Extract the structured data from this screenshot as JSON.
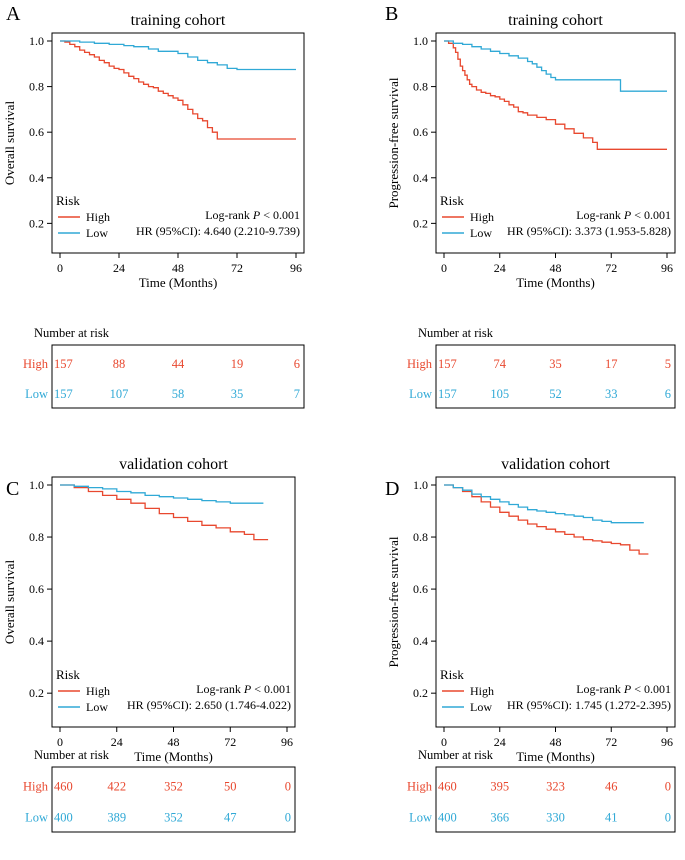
{
  "chart_data": [
    {
      "type": "line",
      "panel": "A",
      "title": "training cohort",
      "xlabel": "Time (Months)",
      "ylabel": "Overall survival",
      "xlim": [
        0,
        96
      ],
      "ylim": [
        0.07,
        1.0
      ],
      "xticks": [
        0,
        24,
        48,
        72,
        96
      ],
      "yticks": [
        0.2,
        0.4,
        0.6,
        0.8,
        1.0
      ],
      "legend_title": "Risk",
      "legend_position": "bottom-left",
      "stats": {
        "logrank_label": "Log-rank ",
        "p_label": "P",
        "p_value": " < 0.001",
        "hr": "HR (95%CI): 4.640 (2.210-9.739)"
      },
      "series": [
        {
          "name": "High",
          "color": "#e8482f",
          "x": [
            0,
            2,
            4,
            6,
            8,
            10,
            12,
            14,
            16,
            18,
            20,
            22,
            24,
            26,
            28,
            30,
            32,
            34,
            36,
            38,
            40,
            42,
            44,
            46,
            48,
            50,
            52,
            54,
            56,
            58,
            60,
            62,
            64,
            66,
            96
          ],
          "y": [
            1.0,
            0.995,
            0.985,
            0.975,
            0.96,
            0.95,
            0.94,
            0.93,
            0.915,
            0.905,
            0.89,
            0.88,
            0.875,
            0.86,
            0.845,
            0.835,
            0.82,
            0.81,
            0.8,
            0.795,
            0.78,
            0.77,
            0.76,
            0.75,
            0.74,
            0.72,
            0.7,
            0.68,
            0.66,
            0.65,
            0.62,
            0.6,
            0.57,
            0.57,
            0.57
          ]
        },
        {
          "name": "Low",
          "color": "#30a9d6",
          "x": [
            0,
            8,
            14,
            20,
            26,
            30,
            36,
            40,
            48,
            52,
            56,
            60,
            64,
            68,
            72,
            96
          ],
          "y": [
            1.0,
            0.995,
            0.99,
            0.985,
            0.98,
            0.975,
            0.965,
            0.955,
            0.945,
            0.93,
            0.915,
            0.905,
            0.895,
            0.88,
            0.875,
            0.875
          ]
        }
      ],
      "risk_table": {
        "title": "Number at risk",
        "rows": [
          {
            "label": "High",
            "color": "#e8482f",
            "values": [
              "157",
              "88",
              "44",
              "19",
              "6"
            ]
          },
          {
            "label": "Low",
            "color": "#30a9d6",
            "values": [
              "157",
              "107",
              "58",
              "35",
              "7"
            ]
          }
        ]
      }
    },
    {
      "type": "line",
      "panel": "B",
      "title": "training cohort",
      "xlabel": "Time (Months)",
      "ylabel": "Progression-free survival",
      "xlim": [
        0,
        96
      ],
      "ylim": [
        0.07,
        1.0
      ],
      "xticks": [
        0,
        24,
        48,
        72,
        96
      ],
      "yticks": [
        0.2,
        0.4,
        0.6,
        0.8,
        1.0
      ],
      "legend_title": "Risk",
      "legend_position": "bottom-left",
      "stats": {
        "logrank_label": "Log-rank ",
        "p_label": "P",
        "p_value": " < 0.001",
        "hr": "HR (95%CI): 3.373 (1.953-5.828)"
      },
      "series": [
        {
          "name": "High",
          "color": "#e8482f",
          "x": [
            0,
            2,
            4,
            5,
            6,
            7,
            8,
            9,
            10,
            11,
            12,
            14,
            16,
            18,
            20,
            22,
            24,
            26,
            28,
            30,
            32,
            34,
            36,
            40,
            44,
            48,
            52,
            56,
            60,
            64,
            66,
            96
          ],
          "y": [
            1.0,
            0.99,
            0.97,
            0.95,
            0.92,
            0.89,
            0.87,
            0.85,
            0.83,
            0.81,
            0.8,
            0.785,
            0.775,
            0.77,
            0.76,
            0.755,
            0.745,
            0.735,
            0.72,
            0.71,
            0.69,
            0.685,
            0.675,
            0.665,
            0.655,
            0.635,
            0.615,
            0.595,
            0.575,
            0.555,
            0.525,
            0.525
          ]
        },
        {
          "name": "Low",
          "color": "#30a9d6",
          "x": [
            0,
            4,
            8,
            12,
            16,
            20,
            24,
            28,
            32,
            36,
            38,
            40,
            42,
            44,
            46,
            48,
            50,
            60,
            70,
            76,
            80,
            96
          ],
          "y": [
            1.0,
            0.99,
            0.985,
            0.975,
            0.965,
            0.955,
            0.945,
            0.935,
            0.925,
            0.91,
            0.9,
            0.885,
            0.87,
            0.855,
            0.84,
            0.83,
            0.83,
            0.83,
            0.83,
            0.78,
            0.78,
            0.78
          ]
        }
      ],
      "risk_table": {
        "title": "Number at risk",
        "rows": [
          {
            "label": "High",
            "color": "#e8482f",
            "values": [
              "157",
              "74",
              "35",
              "17",
              "5"
            ]
          },
          {
            "label": "Low",
            "color": "#30a9d6",
            "values": [
              "157",
              "105",
              "52",
              "33",
              "6"
            ]
          }
        ]
      }
    },
    {
      "type": "line",
      "panel": "C",
      "title": "validation cohort",
      "xlabel": "Time (Months)",
      "ylabel": "Overall survival",
      "xlim": [
        0,
        96
      ],
      "ylim": [
        0.07,
        1.0
      ],
      "xticks": [
        0,
        24,
        48,
        72,
        96
      ],
      "yticks": [
        0.2,
        0.4,
        0.6,
        0.8,
        1.0
      ],
      "legend_title": "Risk",
      "legend_position": "bottom-left",
      "stats": {
        "logrank_label": "Log-rank ",
        "p_label": "P",
        "p_value": " < 0.001",
        "hr": "HR (95%CI): 2.650 (1.746-4.022)"
      },
      "series": [
        {
          "name": "High",
          "color": "#e8482f",
          "x": [
            0,
            6,
            12,
            18,
            24,
            30,
            36,
            42,
            48,
            54,
            60,
            66,
            72,
            78,
            82,
            88
          ],
          "y": [
            1.0,
            0.99,
            0.975,
            0.96,
            0.945,
            0.93,
            0.91,
            0.89,
            0.875,
            0.86,
            0.845,
            0.835,
            0.82,
            0.81,
            0.79,
            0.79
          ]
        },
        {
          "name": "Low",
          "color": "#30a9d6",
          "x": [
            0,
            6,
            12,
            18,
            24,
            30,
            36,
            42,
            48,
            54,
            60,
            66,
            72,
            78,
            86
          ],
          "y": [
            1.0,
            0.995,
            0.99,
            0.985,
            0.975,
            0.97,
            0.96,
            0.955,
            0.95,
            0.945,
            0.94,
            0.935,
            0.93,
            0.93,
            0.93
          ]
        }
      ],
      "risk_table": {
        "title": "Number at risk",
        "rows": [
          {
            "label": "High",
            "color": "#e8482f",
            "values": [
              "460",
              "422",
              "352",
              "50",
              "0"
            ]
          },
          {
            "label": "Low",
            "color": "#30a9d6",
            "values": [
              "400",
              "389",
              "352",
              "47",
              "0"
            ]
          }
        ]
      }
    },
    {
      "type": "line",
      "panel": "D",
      "title": "validation cohort",
      "xlabel": "Time (Months)",
      "ylabel": "Progression-free survival",
      "xlim": [
        0,
        96
      ],
      "ylim": [
        0.07,
        1.0
      ],
      "xticks": [
        0,
        24,
        48,
        72,
        96
      ],
      "yticks": [
        0.2,
        0.4,
        0.6,
        0.8,
        1.0
      ],
      "legend_title": "Risk",
      "legend_position": "bottom-left",
      "stats": {
        "logrank_label": "Log-rank ",
        "p_label": "P",
        "p_value": " < 0.001",
        "hr": "HR (95%CI): 1.745 (1.272-2.395)"
      },
      "series": [
        {
          "name": "High",
          "color": "#e8482f",
          "x": [
            0,
            4,
            8,
            12,
            16,
            20,
            24,
            28,
            32,
            36,
            40,
            44,
            48,
            52,
            56,
            60,
            64,
            68,
            72,
            76,
            80,
            84,
            88
          ],
          "y": [
            1.0,
            0.99,
            0.975,
            0.955,
            0.935,
            0.915,
            0.895,
            0.88,
            0.865,
            0.85,
            0.84,
            0.83,
            0.82,
            0.81,
            0.8,
            0.79,
            0.785,
            0.78,
            0.775,
            0.77,
            0.75,
            0.735,
            0.735
          ]
        },
        {
          "name": "Low",
          "color": "#30a9d6",
          "x": [
            0,
            4,
            8,
            12,
            16,
            20,
            24,
            28,
            32,
            36,
            40,
            44,
            48,
            52,
            56,
            60,
            64,
            68,
            72,
            76,
            80,
            86
          ],
          "y": [
            1.0,
            0.99,
            0.98,
            0.965,
            0.955,
            0.945,
            0.935,
            0.925,
            0.915,
            0.905,
            0.9,
            0.895,
            0.89,
            0.885,
            0.88,
            0.875,
            0.865,
            0.86,
            0.855,
            0.855,
            0.855,
            0.855
          ]
        }
      ],
      "risk_table": {
        "title": "Number at risk",
        "rows": [
          {
            "label": "High",
            "color": "#e8482f",
            "values": [
              "460",
              "395",
              "323",
              "46",
              "0"
            ]
          },
          {
            "label": "Low",
            "color": "#30a9d6",
            "values": [
              "400",
              "366",
              "330",
              "41",
              "0"
            ]
          }
        ]
      }
    }
  ]
}
